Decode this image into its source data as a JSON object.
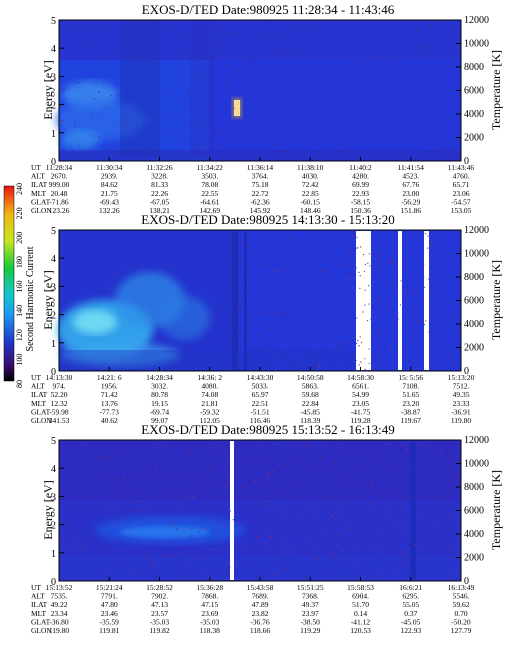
{
  "colorbar": {
    "label": "Second Harmonic Current",
    "ticks": [
      "80",
      "100",
      "120",
      "140",
      "160",
      "180",
      "200",
      "220",
      "240"
    ],
    "colors": [
      "#000000",
      "#3b0a6e",
      "#2038c8",
      "#1f9cf0",
      "#14c8c8",
      "#18c83c",
      "#c8e61e",
      "#f0b414",
      "#e61414"
    ]
  },
  "chart_data": [
    {
      "type": "heatmap",
      "title": "EXOS-D/TED   Date:980925  11:28:34 - 11:43:46",
      "ylabel": "Energy [eV]",
      "ylabel_right": "Temperature [K]",
      "ylim": [
        0,
        5
      ],
      "yticks": [
        "0",
        "1",
        "2",
        "3",
        "4",
        "5"
      ],
      "ylim_right": [
        0,
        12000
      ],
      "yticks_right": [
        "0",
        "2000",
        "4000",
        "6000",
        "8000",
        "10000",
        "12000"
      ],
      "table": {
        "labels": [
          "UT",
          "ALT",
          "ILAT",
          "MLT",
          "GLAT",
          "GLON"
        ],
        "columns": [
          [
            "11:28:34",
            "2670.",
            "999.00",
            "20.48",
            "-71.86",
            "123.26"
          ],
          [
            "11:30:34",
            "2939.",
            "84.62",
            "21.75",
            "-69.43",
            "132.26"
          ],
          [
            "11:32:26",
            "3228.",
            "81.33",
            "22.26",
            "-67.05",
            "138.21"
          ],
          [
            "11:34:22",
            "3503.",
            "78.08",
            "22.55",
            "-64.61",
            "142.69"
          ],
          [
            "11:36:14",
            "3764.",
            "75.18",
            "22.72",
            "-62.36",
            "145.92"
          ],
          [
            "11:38:10",
            "4030.",
            "72.42",
            "22.85",
            "-60.15",
            "148.46"
          ],
          [
            "11:40:2",
            "4280.",
            "69.99",
            "22.93",
            "-58.15",
            "150.36"
          ],
          [
            "11:41:54",
            "4523.",
            "67.76",
            "23.00",
            "-56.29",
            "151.86"
          ],
          [
            "11:43:46",
            "4760.",
            "65.71",
            "23.06",
            "-54.57",
            "153.05"
          ]
        ]
      }
    },
    {
      "type": "heatmap",
      "title": "EXOS-D/TED   Date:980925  14:13:30 - 15:13:20",
      "ylabel": "Energy [eV]",
      "ylabel_right": "Temperature [K]",
      "ylim": [
        0,
        5
      ],
      "yticks": [
        "0",
        "1",
        "2",
        "3",
        "4",
        "5"
      ],
      "ylim_right": [
        0,
        12000
      ],
      "yticks_right": [
        "0",
        "2000",
        "4000",
        "6000",
        "8000",
        "10000",
        "12000"
      ],
      "table": {
        "labels": [
          "UT",
          "ALT",
          "ILAT",
          "MLT",
          "GLAT",
          "GLON"
        ],
        "columns": [
          [
            "14:13:30",
            "974.",
            "52.20",
            "12.32",
            "-59.98",
            "341.53"
          ],
          [
            "14:21: 6",
            "1956.",
            "71.42",
            "13.76",
            "-77.73",
            "40.62"
          ],
          [
            "14:28:34",
            "3032.",
            "80.78",
            "19.15",
            "-69.74",
            "99.07"
          ],
          [
            "14:36: 2",
            "4080.",
            "74.08",
            "21.81",
            "-59.32",
            "112.05"
          ],
          [
            "14:43:30",
            "5033.",
            "65.97",
            "22.51",
            "-51.51",
            "116.46"
          ],
          [
            "14:50:58",
            "5863.",
            "59.68",
            "22.84",
            "-45.85",
            "118.39"
          ],
          [
            "14:58:30",
            "6561.",
            "54.99",
            "23.05",
            "-41.75",
            "119.28"
          ],
          [
            "15: 5:56",
            "7108.",
            "51.65",
            "23.20",
            "-38.87",
            "119.67"
          ],
          [
            "15:13:20",
            "7512.",
            "49.35",
            "23.33",
            "-36.91",
            "119.80"
          ]
        ]
      }
    },
    {
      "type": "heatmap",
      "title": "EXOS-D/TED   Date:980925  15:13:52 - 16:13:49",
      "ylabel": "Energy [eV]",
      "ylabel_right": "Temperature [K]",
      "ylim": [
        0,
        5
      ],
      "yticks": [
        "0",
        "1",
        "2",
        "3",
        "4",
        "5"
      ],
      "ylim_right": [
        0,
        12000
      ],
      "yticks_right": [
        "0",
        "2000",
        "4000",
        "6000",
        "8000",
        "10000",
        "12000"
      ],
      "table": {
        "labels": [
          "UT",
          "ALT",
          "ILAT",
          "MLT",
          "GLAT",
          "GLON"
        ],
        "columns": [
          [
            "15:13:52",
            "7535.",
            "49.22",
            "23.34",
            "-36.80",
            "119.80"
          ],
          [
            "15:21:24",
            "7791.",
            "47.80",
            "23.46",
            "-35.59",
            "119.81"
          ],
          [
            "15:28:52",
            "7902.",
            "47.13",
            "23.57",
            "-35.03",
            "119.82"
          ],
          [
            "15:36:28",
            "7868.",
            "47.15",
            "23.69",
            "-35.03",
            "118.38"
          ],
          [
            "15:43:58",
            "7689.",
            "47.89",
            "23.82",
            "-36.76",
            "118.66"
          ],
          [
            "15:51:25",
            "7368.",
            "49.37",
            "23.97",
            "-38.50",
            "119.29"
          ],
          [
            "15:58:53",
            "6904.",
            "51.70",
            "0.14",
            "-41.12",
            "120.53"
          ],
          [
            "16:6:21",
            "6295.",
            "55.05",
            "0.37",
            "-45.05",
            "122.93"
          ],
          [
            "16:13:49",
            "5546.",
            "59.62",
            "0.70",
            "-50.20",
            "127.79"
          ]
        ]
      }
    }
  ]
}
